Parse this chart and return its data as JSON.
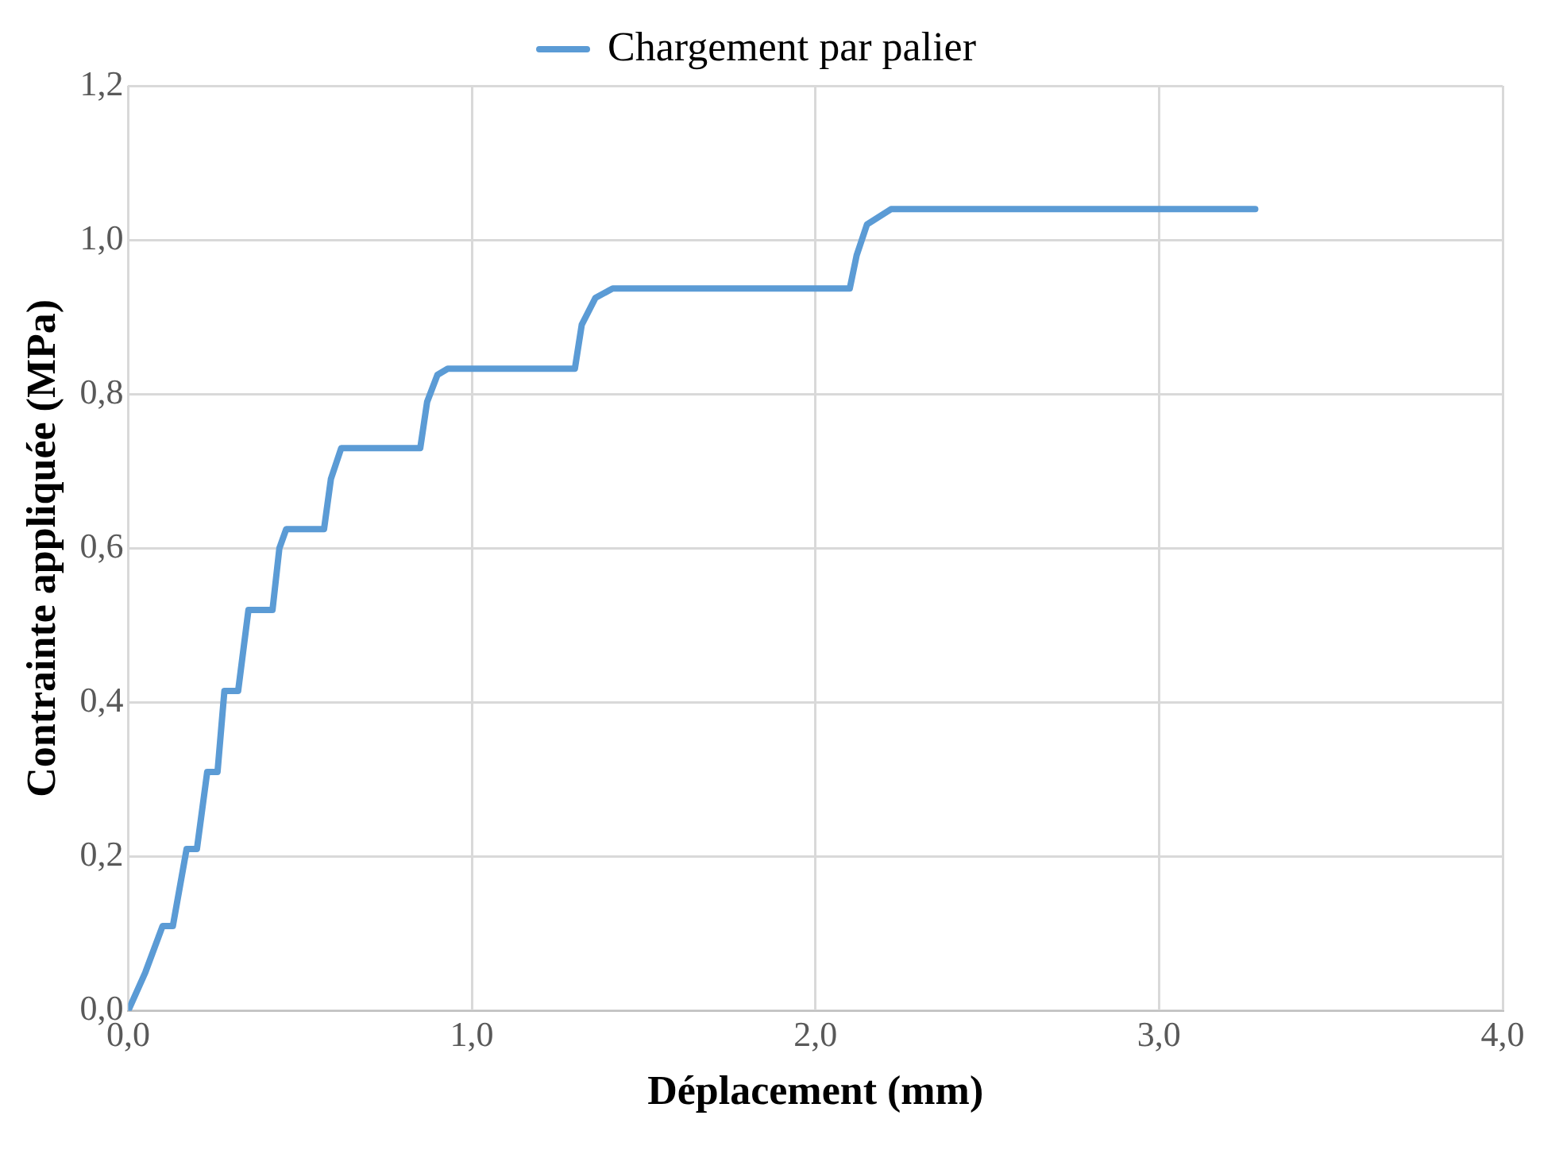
{
  "chart_data": {
    "type": "line",
    "xlabel": "Déplacement (mm)",
    "ylabel": "Contrainte appliquée (MPa)",
    "legend": "top",
    "grid": true,
    "marker": "none",
    "line_style": "solid",
    "xlim": [
      0,
      4
    ],
    "xticks": [
      {
        "value": 0,
        "label": "0,0"
      },
      {
        "value": 1,
        "label": "1,0"
      },
      {
        "value": 2,
        "label": "2,0"
      },
      {
        "value": 3,
        "label": "3,0"
      },
      {
        "value": 4,
        "label": "4,0"
      }
    ],
    "ylim": [
      0,
      1.2
    ],
    "yticks": [
      {
        "value": 0,
        "label": "0,0"
      },
      {
        "value": 0.2,
        "label": "0,2"
      },
      {
        "value": 0.4,
        "label": "0,4"
      },
      {
        "value": 0.6,
        "label": "0,6"
      },
      {
        "value": 0.8,
        "label": "0,8"
      },
      {
        "value": 1,
        "label": "1,0"
      },
      {
        "value": 1.2,
        "label": "1,2"
      }
    ],
    "series": [
      {
        "name": "Chargement par palier",
        "color": "#5b9bd5",
        "x": [
          0,
          0.05,
          0.1,
          0.13,
          0.17,
          0.2,
          0.23,
          0.26,
          0.28,
          0.32,
          0.35,
          0.42,
          0.44,
          0.46,
          0.57,
          0.59,
          0.62,
          0.85,
          0.87,
          0.9,
          0.93,
          1.3,
          1.32,
          1.36,
          1.41,
          2.1,
          2.12,
          2.15,
          2.22,
          2.6,
          3.0,
          3.28
        ],
        "values": [
          0,
          0.05,
          0.11,
          0.11,
          0.21,
          0.21,
          0.31,
          0.31,
          0.415,
          0.415,
          0.52,
          0.52,
          0.6,
          0.625,
          0.625,
          0.69,
          0.73,
          0.73,
          0.79,
          0.825,
          0.833,
          0.833,
          0.89,
          0.925,
          0.937,
          0.937,
          0.98,
          1.02,
          1.04,
          1.04,
          1.04,
          1.04
        ]
      }
    ]
  }
}
